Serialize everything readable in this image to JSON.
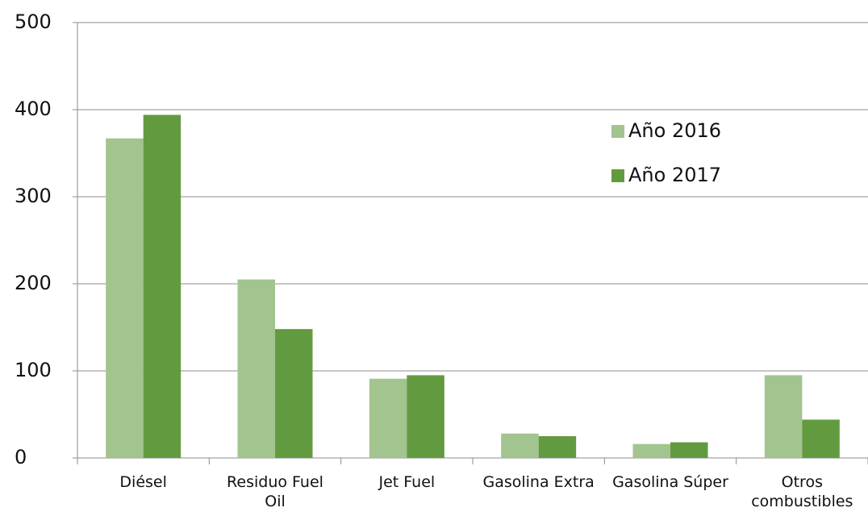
{
  "chart_data": {
    "type": "bar",
    "categories": [
      "Diésel",
      "Residuo Fuel Oil",
      "Jet Fuel",
      "Gasolina Extra",
      "Gasolina Súper",
      "Otros combustibles"
    ],
    "series": [
      {
        "name": "Año 2016",
        "color": "#a2c48f",
        "values": [
          367,
          205,
          91,
          28,
          16,
          95
        ]
      },
      {
        "name": "Año 2017",
        "color": "#629b3f",
        "values": [
          394,
          148,
          95,
          25,
          18,
          44
        ]
      }
    ],
    "ylim": [
      0,
      500
    ],
    "yticks": [
      0,
      100,
      200,
      300,
      400,
      500
    ],
    "grid": true,
    "legend": "right"
  }
}
